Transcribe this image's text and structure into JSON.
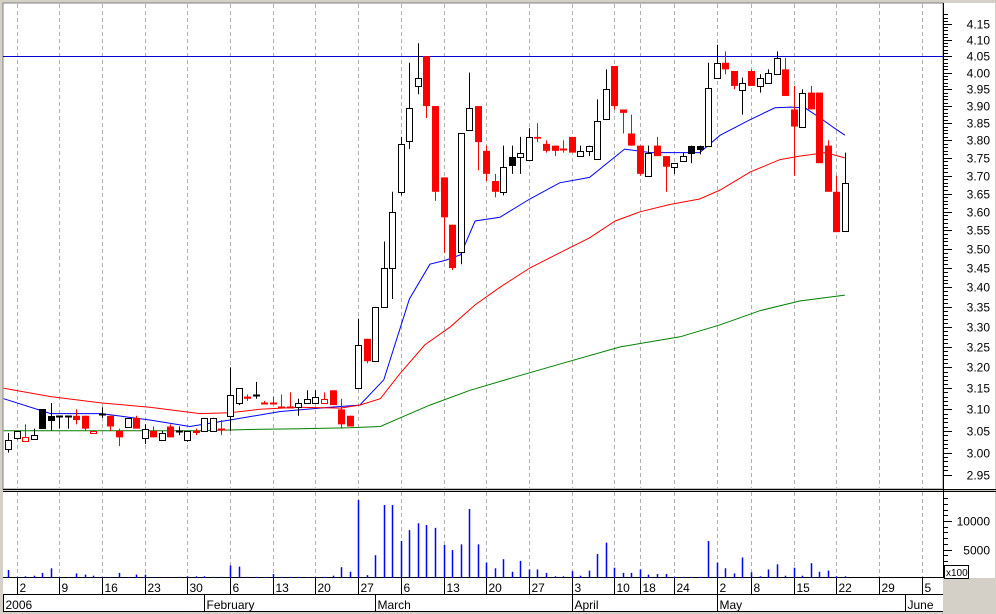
{
  "chart_data": {
    "type": "candlestick",
    "price_scale": "log",
    "ylim": [
      2.95,
      4.15
    ],
    "yticks": [
      "4.15",
      "4.10",
      "4.05",
      "4.00",
      "3.95",
      "3.90",
      "3.85",
      "3.80",
      "3.75",
      "3.70",
      "3.65",
      "3.60",
      "3.55",
      "3.50",
      "3.45",
      "3.40",
      "3.35",
      "3.30",
      "3.25",
      "3.20",
      "3.15",
      "3.10",
      "3.05",
      "3.00",
      "2.95"
    ],
    "hline": {
      "value": 4.05,
      "color": "#0000cc"
    },
    "candle_format": [
      "open",
      "high",
      "low",
      "close",
      "style"
    ],
    "candles": [
      [
        3.01,
        3.045,
        3.0,
        3.03,
        "h"
      ],
      [
        3.035,
        3.05,
        3.03,
        3.05,
        "h"
      ],
      [
        3.025,
        3.065,
        3.025,
        3.035,
        "ro"
      ],
      [
        3.03,
        3.055,
        3.03,
        3.04,
        "h"
      ],
      [
        3.1,
        3.1,
        3.055,
        3.055,
        "k"
      ],
      [
        3.085,
        3.115,
        3.05,
        3.075,
        "k"
      ],
      [
        3.085,
        3.085,
        3.055,
        3.085,
        "k"
      ],
      [
        3.085,
        3.085,
        3.055,
        3.085,
        "k"
      ],
      [
        3.085,
        3.1,
        3.065,
        3.075,
        "r"
      ],
      [
        3.085,
        3.085,
        3.05,
        3.055,
        "r"
      ],
      [
        3.045,
        3.05,
        3.045,
        3.05,
        "ro"
      ],
      [
        3.09,
        3.105,
        3.08,
        3.09,
        "k"
      ],
      [
        3.085,
        3.085,
        3.05,
        3.06,
        "r"
      ],
      [
        3.05,
        3.055,
        3.015,
        3.035,
        "r"
      ],
      [
        3.06,
        3.08,
        3.06,
        3.08,
        "h"
      ],
      [
        3.08,
        3.085,
        3.055,
        3.055,
        "r"
      ],
      [
        3.035,
        3.065,
        3.02,
        3.055,
        "h"
      ],
      [
        3.05,
        3.06,
        3.035,
        3.035,
        "r"
      ],
      [
        3.03,
        3.05,
        3.03,
        3.045,
        "h"
      ],
      [
        3.06,
        3.065,
        3.035,
        3.035,
        "r"
      ],
      [
        3.05,
        3.06,
        3.04,
        3.05,
        "k"
      ],
      [
        3.03,
        3.05,
        3.025,
        3.05,
        "h"
      ],
      [
        3.05,
        3.055,
        3.04,
        3.045,
        "r"
      ],
      [
        3.05,
        3.08,
        3.05,
        3.08,
        "h"
      ],
      [
        3.05,
        3.08,
        3.05,
        3.08,
        "h"
      ],
      [
        3.055,
        3.075,
        3.04,
        3.055,
        "r"
      ],
      [
        3.085,
        3.2,
        3.05,
        3.135,
        "h"
      ],
      [
        3.115,
        3.15,
        3.11,
        3.15,
        "h"
      ],
      [
        3.13,
        3.135,
        3.12,
        3.125,
        "r"
      ],
      [
        3.135,
        3.165,
        3.125,
        3.135,
        "k"
      ],
      [
        3.115,
        3.12,
        3.115,
        3.115,
        "r"
      ],
      [
        3.115,
        3.13,
        3.115,
        3.115,
        "r"
      ],
      [
        3.105,
        3.135,
        3.105,
        3.105,
        "r"
      ],
      [
        3.105,
        3.14,
        3.105,
        3.105,
        "r"
      ],
      [
        3.105,
        3.125,
        3.085,
        3.115,
        "h"
      ],
      [
        3.115,
        3.145,
        3.115,
        3.125,
        "h"
      ],
      [
        3.115,
        3.145,
        3.115,
        3.13,
        "h"
      ],
      [
        3.115,
        3.14,
        3.115,
        3.125,
        "ro"
      ],
      [
        3.145,
        3.145,
        3.11,
        3.11,
        "r"
      ],
      [
        3.1,
        3.125,
        3.055,
        3.065,
        "r"
      ],
      [
        3.085,
        3.085,
        3.06,
        3.06,
        "r"
      ],
      [
        3.15,
        3.32,
        3.15,
        3.255,
        "h"
      ],
      [
        3.27,
        3.27,
        3.21,
        3.215,
        "r"
      ],
      [
        3.215,
        3.35,
        3.215,
        3.35,
        "h"
      ],
      [
        3.35,
        3.52,
        3.35,
        3.45,
        "h"
      ],
      [
        3.45,
        3.655,
        3.37,
        3.6,
        "h"
      ],
      [
        3.655,
        3.81,
        3.645,
        3.79,
        "h"
      ],
      [
        3.8,
        4.03,
        3.775,
        3.895,
        "h"
      ],
      [
        3.96,
        4.09,
        3.935,
        3.985,
        "h"
      ],
      [
        4.05,
        4.05,
        3.865,
        3.9,
        "r"
      ],
      [
        3.9,
        3.9,
        3.63,
        3.655,
        "r"
      ],
      [
        3.695,
        3.695,
        3.49,
        3.585,
        "r"
      ],
      [
        3.565,
        3.565,
        3.445,
        3.45,
        "r"
      ],
      [
        3.49,
        3.82,
        3.46,
        3.82,
        "h"
      ],
      [
        3.83,
        4.0,
        3.83,
        3.895,
        "h"
      ],
      [
        3.9,
        3.9,
        3.715,
        3.795,
        "r"
      ],
      [
        3.77,
        3.785,
        3.685,
        3.705,
        "r"
      ],
      [
        3.685,
        3.705,
        3.64,
        3.655,
        "r"
      ],
      [
        3.655,
        3.785,
        3.645,
        3.725,
        "h"
      ],
      [
        3.753,
        3.785,
        3.705,
        3.73,
        "k"
      ],
      [
        3.755,
        3.81,
        3.705,
        3.765,
        "h"
      ],
      [
        3.745,
        3.835,
        3.745,
        3.81,
        "h"
      ],
      [
        3.81,
        3.85,
        3.795,
        3.805,
        "r"
      ],
      [
        3.79,
        3.8,
        3.765,
        3.77,
        "r"
      ],
      [
        3.785,
        3.785,
        3.755,
        3.77,
        "r"
      ],
      [
        3.775,
        3.8,
        3.765,
        3.775,
        "r"
      ],
      [
        3.81,
        3.81,
        3.765,
        3.765,
        "r"
      ],
      [
        3.755,
        3.785,
        3.755,
        3.77,
        "h"
      ],
      [
        3.77,
        3.785,
        3.755,
        3.785,
        "h"
      ],
      [
        3.745,
        3.92,
        3.745,
        3.855,
        "h"
      ],
      [
        3.86,
        4.01,
        3.86,
        3.95,
        "h"
      ],
      [
        4.02,
        4.02,
        3.89,
        3.9,
        "r"
      ],
      [
        3.89,
        3.89,
        3.82,
        3.88,
        "r"
      ],
      [
        3.82,
        3.875,
        3.785,
        3.785,
        "r"
      ],
      [
        3.785,
        3.785,
        3.7,
        3.705,
        "r"
      ],
      [
        3.7,
        3.785,
        3.7,
        3.765,
        "h"
      ],
      [
        3.785,
        3.81,
        3.755,
        3.755,
        "r"
      ],
      [
        3.755,
        3.755,
        3.655,
        3.725,
        "r"
      ],
      [
        3.725,
        3.735,
        3.705,
        3.735,
        "h"
      ],
      [
        3.74,
        3.765,
        3.74,
        3.755,
        "h"
      ],
      [
        3.785,
        3.785,
        3.735,
        3.765,
        "k"
      ],
      [
        3.785,
        3.785,
        3.76,
        3.775,
        "k"
      ],
      [
        3.785,
        4.03,
        3.785,
        3.955,
        "h"
      ],
      [
        3.985,
        4.085,
        3.985,
        4.03,
        "h"
      ],
      [
        4.03,
        4.065,
        3.995,
        4.01,
        "r"
      ],
      [
        4.005,
        4.005,
        3.95,
        3.96,
        "r"
      ],
      [
        3.95,
        3.985,
        3.875,
        3.97,
        "h"
      ],
      [
        4.005,
        4.01,
        3.96,
        3.96,
        "r"
      ],
      [
        3.96,
        3.995,
        3.94,
        3.985,
        "h"
      ],
      [
        3.97,
        4.01,
        3.97,
        4.0,
        "h"
      ],
      [
        3.995,
        4.065,
        3.995,
        4.045,
        "h"
      ],
      [
        4.01,
        4.045,
        3.93,
        3.93,
        "r"
      ],
      [
        3.89,
        3.96,
        3.7,
        3.84,
        "r"
      ],
      [
        3.84,
        3.95,
        3.84,
        3.94,
        "h"
      ],
      [
        3.94,
        3.96,
        3.89,
        3.89,
        "r"
      ],
      [
        3.94,
        3.94,
        3.735,
        3.735,
        "r"
      ],
      [
        3.785,
        3.8,
        3.655,
        3.655,
        "r"
      ],
      [
        3.655,
        3.7,
        3.545,
        3.545,
        "r"
      ],
      [
        3.55,
        3.765,
        3.55,
        3.68,
        "h"
      ]
    ],
    "moving_averages": [
      {
        "color": "#0000ff",
        "points": [
          [
            -0.5,
            3.125
          ],
          [
            5,
            3.09
          ],
          [
            11,
            3.09
          ],
          [
            16.6,
            3.075
          ],
          [
            21.3,
            3.06
          ],
          [
            26,
            3.075
          ],
          [
            31.9,
            3.095
          ],
          [
            37.7,
            3.105
          ],
          [
            41.2,
            3.11
          ],
          [
            44,
            3.17
          ],
          [
            47,
            3.37
          ],
          [
            49.4,
            3.46
          ],
          [
            51.2,
            3.47
          ],
          [
            53,
            3.485
          ],
          [
            54.7,
            3.575
          ],
          [
            57.6,
            3.585
          ],
          [
            61.1,
            3.635
          ],
          [
            64.6,
            3.68
          ],
          [
            68.1,
            3.695
          ],
          [
            69.9,
            3.73
          ],
          [
            72.2,
            3.775
          ],
          [
            75.2,
            3.765
          ],
          [
            78.7,
            3.765
          ],
          [
            81,
            3.765
          ],
          [
            83.4,
            3.815
          ],
          [
            86.9,
            3.86
          ],
          [
            89.8,
            3.895
          ],
          [
            91.6,
            3.897
          ],
          [
            93.3,
            3.895
          ],
          [
            95.1,
            3.865
          ],
          [
            96.8,
            3.835
          ],
          [
            98,
            3.815
          ]
        ]
      },
      {
        "color": "#ff0000",
        "points": [
          [
            -0.5,
            3.15
          ],
          [
            5,
            3.13
          ],
          [
            11,
            3.115
          ],
          [
            16.6,
            3.105
          ],
          [
            22.5,
            3.09
          ],
          [
            26,
            3.092
          ],
          [
            29.5,
            3.1
          ],
          [
            34,
            3.105
          ],
          [
            38.9,
            3.103
          ],
          [
            41.2,
            3.11
          ],
          [
            43.6,
            3.125
          ],
          [
            45.9,
            3.185
          ],
          [
            48.8,
            3.255
          ],
          [
            51.8,
            3.3
          ],
          [
            54.7,
            3.355
          ],
          [
            57.6,
            3.4
          ],
          [
            61.1,
            3.45
          ],
          [
            64.6,
            3.49
          ],
          [
            68.1,
            3.53
          ],
          [
            71.1,
            3.575
          ],
          [
            74,
            3.6
          ],
          [
            77.5,
            3.62
          ],
          [
            81,
            3.635
          ],
          [
            83.4,
            3.66
          ],
          [
            86.9,
            3.71
          ],
          [
            90.4,
            3.745
          ],
          [
            92.7,
            3.755
          ],
          [
            95.7,
            3.765
          ],
          [
            98,
            3.75
          ]
        ]
      },
      {
        "color": "#008000",
        "points": [
          [
            -0.5,
            3.05
          ],
          [
            22.5,
            3.05
          ],
          [
            28.3,
            3.053
          ],
          [
            34.2,
            3.055
          ],
          [
            40,
            3.057
          ],
          [
            43.6,
            3.06
          ],
          [
            45.9,
            3.08
          ],
          [
            49.4,
            3.11
          ],
          [
            54.1,
            3.145
          ],
          [
            59.9,
            3.18
          ],
          [
            65.8,
            3.215
          ],
          [
            71.7,
            3.25
          ],
          [
            78.7,
            3.275
          ],
          [
            83.4,
            3.305
          ],
          [
            88,
            3.34
          ],
          [
            92.7,
            3.365
          ],
          [
            98,
            3.38
          ]
        ]
      }
    ],
    "volume": {
      "unit_label": "x100",
      "yticks": [
        "10000",
        "5000"
      ],
      "ylim": [
        0,
        15000
      ],
      "color": "#0000ff",
      "values": [
        1400,
        200,
        300,
        400,
        900,
        1700,
        100,
        100,
        800,
        600,
        400,
        100,
        100,
        900,
        100,
        600,
        600,
        100,
        100,
        100,
        200,
        300,
        300,
        300,
        200,
        200,
        2200,
        2000,
        200,
        200,
        100,
        700,
        200,
        200,
        200,
        100,
        100,
        200,
        400,
        1900,
        1100,
        13700,
        500,
        4000,
        12800,
        12800,
        6500,
        8400,
        9600,
        9300,
        8800,
        5800,
        4900,
        5900,
        12100,
        5900,
        2700,
        1700,
        3300,
        1100,
        3000,
        1500,
        1500,
        900,
        300,
        300,
        1200,
        400,
        1300,
        4200,
        6200,
        1800,
        900,
        900,
        1500,
        600,
        700,
        700,
        200,
        200,
        200,
        200,
        6500,
        2700,
        1700,
        800,
        3600,
        1000,
        300,
        1500,
        2400,
        400,
        1800,
        400,
        2600,
        1100,
        1300,
        300,
        300
      ]
    },
    "x_ticks": [
      {
        "label": "2",
        "index": 1
      },
      {
        "label": "9",
        "index": 6
      },
      {
        "label": "16",
        "index": 11
      },
      {
        "label": "23",
        "index": 16
      },
      {
        "label": "30",
        "index": 21
      },
      {
        "label": "6",
        "index": 26
      },
      {
        "label": "13",
        "index": 31
      },
      {
        "label": "20",
        "index": 36
      },
      {
        "label": "27",
        "index": 41
      },
      {
        "label": "6",
        "index": 46
      },
      {
        "label": "13",
        "index": 51
      },
      {
        "label": "20",
        "index": 56
      },
      {
        "label": "27",
        "index": 61
      },
      {
        "label": "3",
        "index": 66
      },
      {
        "label": "10",
        "index": 71
      },
      {
        "label": "18",
        "index": 74
      },
      {
        "label": "24",
        "index": 78
      },
      {
        "label": "2",
        "index": 83
      },
      {
        "label": "8",
        "index": 87
      },
      {
        "label": "15",
        "index": 92
      },
      {
        "label": "22",
        "index": 97
      },
      {
        "label": "29",
        "index": 102
      },
      {
        "label": "5",
        "index": 107
      }
    ],
    "x_months": [
      {
        "label": "2006",
        "index": -1
      },
      {
        "label": "February",
        "index": 23
      },
      {
        "label": "March",
        "index": 43
      },
      {
        "label": "April",
        "index": 66
      },
      {
        "label": "May",
        "index": 83
      },
      {
        "label": "June",
        "index": 105
      }
    ]
  }
}
